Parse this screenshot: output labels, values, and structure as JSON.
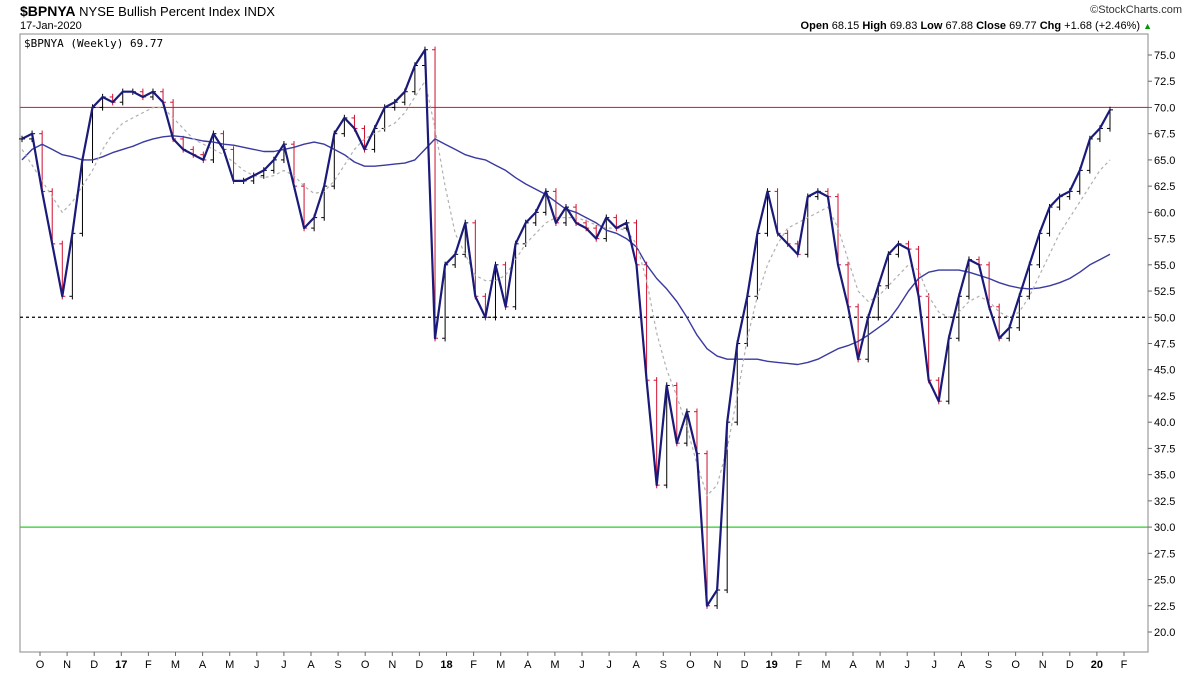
{
  "header": {
    "symbol": "$BPNYA",
    "name": "NYSE Bullish Percent Index",
    "exchange": "INDX",
    "date": "17-Jan-2020",
    "brand": "©StockCharts.com",
    "open_label": "Open",
    "open": "68.15",
    "high_label": "High",
    "high": "69.83",
    "low_label": "Low",
    "low": "67.88",
    "close_label": "Close",
    "close": "69.77",
    "chg_label": "Chg",
    "chg": "+1.68 (+2.46%)",
    "chg_arrow": "▲"
  },
  "legend": {
    "text": "$BPNYA (Weekly) 69.77"
  },
  "colors": {
    "price": "#1a1a7a",
    "ma_fast": "#b0b0b0",
    "ma_slow": "#3a3aa0",
    "line_70": "#e0284a",
    "line_30": "#2ecc2e",
    "line_50": "#000000",
    "bar_up": "#000000",
    "bar_down": "#d0102f"
  },
  "chart_data": {
    "type": "line",
    "title": "$BPNYA NYSE Bullish Percent Index INDX",
    "ylim": [
      18,
      77.5
    ],
    "yticks": [
      20.0,
      22.5,
      25.0,
      27.5,
      30.0,
      32.5,
      35.0,
      37.5,
      40.0,
      42.5,
      45.0,
      47.5,
      50.0,
      52.5,
      55.0,
      57.5,
      60.0,
      62.5,
      65.0,
      67.5,
      70.0,
      72.5,
      75.0
    ],
    "x_tick_labels": [
      "O",
      "N",
      "D",
      "17",
      "F",
      "M",
      "A",
      "M",
      "J",
      "J",
      "A",
      "S",
      "O",
      "N",
      "D",
      "18",
      "F",
      "M",
      "A",
      "M",
      "J",
      "J",
      "A",
      "S",
      "O",
      "N",
      "D",
      "19",
      "F",
      "M",
      "A",
      "M",
      "J",
      "J",
      "A",
      "S",
      "O",
      "N",
      "D",
      "20",
      "F"
    ],
    "x_bold_labels": [
      "17",
      "18",
      "19",
      "20"
    ],
    "reference_lines": [
      70,
      50,
      30
    ],
    "series": [
      {
        "values": [
          67.0,
          67.5,
          62.0,
          57.0,
          52.0,
          58.0,
          65.0,
          70.0,
          71.0,
          70.5,
          71.5,
          71.5,
          71.0,
          71.5,
          70.5,
          67.0,
          66.0,
          65.5,
          65.0,
          67.5,
          66.0,
          63.0,
          63.0,
          63.5,
          64.0,
          65.0,
          66.5,
          62.5,
          58.5,
          59.5,
          62.5,
          67.5,
          69.0,
          68.0,
          66.0,
          68.0,
          70.0,
          70.5,
          71.5,
          74.0,
          75.5,
          48.0,
          55.0,
          56.0,
          59.0,
          52.0,
          50.0,
          55.0,
          51.0,
          57.0,
          59.0,
          60.0,
          62.0,
          59.0,
          60.5,
          59.0,
          58.5,
          57.5,
          59.5,
          58.5,
          59.0,
          55.0,
          44.0,
          34.0,
          43.5,
          38.0,
          41.0,
          37.0,
          22.5,
          24.0,
          40.0,
          47.5,
          52.0,
          58.0,
          62.0,
          58.0,
          57.0,
          56.0,
          61.5,
          62.0,
          61.5,
          55.0,
          51.0,
          46.0,
          50.0,
          53.0,
          56.0,
          57.0,
          56.5,
          52.0,
          44.0,
          42.0,
          48.0,
          52.0,
          55.5,
          55.0,
          51.0,
          48.0,
          49.0,
          52.0,
          55.0,
          58.0,
          60.5,
          61.5,
          62.0,
          64.0,
          67.0,
          68.0,
          69.77
        ]
      },
      {
        "values": [
          66.0,
          64.5,
          63.0,
          61.5,
          60.0,
          61.0,
          62.5,
          64.0,
          66.0,
          67.5,
          68.5,
          69.0,
          69.5,
          70.0,
          70.0,
          69.0,
          68.0,
          67.0,
          66.5,
          66.0,
          65.5,
          64.8,
          64.0,
          63.5,
          63.3,
          63.5,
          64.0,
          63.5,
          62.5,
          61.8,
          62.0,
          63.0,
          64.5,
          66.0,
          67.0,
          67.5,
          68.0,
          68.5,
          69.5,
          71.0,
          72.5,
          68.0,
          62.5,
          58.0,
          56.0,
          54.0,
          53.5,
          53.5,
          54.0,
          55.5,
          57.0,
          58.0,
          59.0,
          59.5,
          59.5,
          59.5,
          59.2,
          58.8,
          58.5,
          58.5,
          58.3,
          57.0,
          53.5,
          48.5,
          45.0,
          42.5,
          39.5,
          36.0,
          33.0,
          34.0,
          37.5,
          42.5,
          48.0,
          52.0,
          55.0,
          57.0,
          58.5,
          59.0,
          59.5,
          60.0,
          60.5,
          58.5,
          55.5,
          52.5,
          51.5,
          52.0,
          53.0,
          54.0,
          55.0,
          54.5,
          52.0,
          50.5,
          50.0,
          50.5,
          51.5,
          52.0,
          51.5,
          50.5,
          50.0,
          50.5,
          52.0,
          54.0,
          56.0,
          58.0,
          59.5,
          61.0,
          62.5,
          64.0,
          65.0
        ]
      },
      {
        "values": [
          65.0,
          66.0,
          66.5,
          66.0,
          65.5,
          65.3,
          65.0,
          65.0,
          65.3,
          65.7,
          66.0,
          66.3,
          66.7,
          67.0,
          67.2,
          67.3,
          67.2,
          67.0,
          66.8,
          66.7,
          66.5,
          66.4,
          66.2,
          66.0,
          65.8,
          65.8,
          66.0,
          66.2,
          66.5,
          66.7,
          66.5,
          66.0,
          65.5,
          64.8,
          64.4,
          64.4,
          64.5,
          64.6,
          64.7,
          65.0,
          66.0,
          67.0,
          66.5,
          66.0,
          65.5,
          65.2,
          65.0,
          64.5,
          64.0,
          63.3,
          62.7,
          62.2,
          61.7,
          61.0,
          60.3,
          60.0,
          59.5,
          59.0,
          58.3,
          58.0,
          57.5,
          56.7,
          55.0,
          53.7,
          52.7,
          51.5,
          50.0,
          48.3,
          47.0,
          46.3,
          46.0,
          46.0,
          46.0,
          46.0,
          45.8,
          45.7,
          45.6,
          45.5,
          45.7,
          46.0,
          46.5,
          47.0,
          47.3,
          47.7,
          48.3,
          49.0,
          49.7,
          51.0,
          52.5,
          53.7,
          54.3,
          54.5,
          54.5,
          54.5,
          54.3,
          54.0,
          53.7,
          53.3,
          53.0,
          52.8,
          52.7,
          52.8,
          53.0,
          53.3,
          53.7,
          54.3,
          55.0,
          55.5,
          56.0
        ]
      }
    ]
  }
}
